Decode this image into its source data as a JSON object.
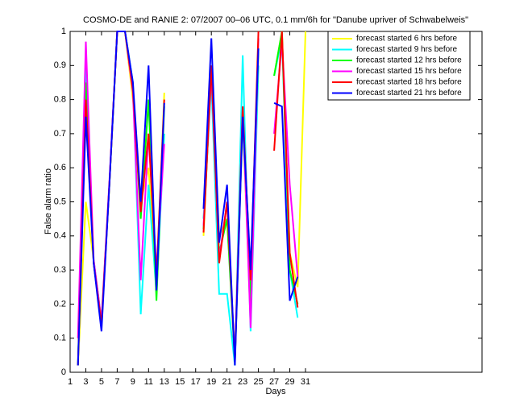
{
  "chart_data": {
    "type": "line",
    "title": "COSMO-DE and RANIE 2: 07/2007 00–06 UTC, 0.1 mm/6h for \"Danube upriver of Schwabelweis\"",
    "xlabel": "Days",
    "ylabel": "False alarm ratio",
    "x": [
      1,
      2,
      3,
      4,
      5,
      6,
      7,
      8,
      9,
      10,
      11,
      12,
      13,
      14,
      15,
      16,
      17,
      18,
      19,
      20,
      21,
      22,
      23,
      24,
      25,
      26,
      27,
      28,
      29,
      30,
      31
    ],
    "xlim": [
      1,
      53.5
    ],
    "ylim": [
      0,
      1
    ],
    "xticks": [
      1,
      3,
      5,
      7,
      9,
      11,
      13,
      15,
      17,
      19,
      21,
      23,
      25,
      27,
      29,
      31
    ],
    "yticks": [
      0,
      0.1,
      0.2,
      0.3,
      0.4,
      0.5,
      0.6,
      0.7,
      0.8,
      0.9,
      1
    ],
    "legend": "upper right",
    "series": [
      {
        "name": "forecast started 6 hrs before",
        "color": "#ffff00",
        "values": [
          null,
          0.02,
          0.5,
          0.33,
          0.15,
          0.55,
          1,
          1,
          0.8,
          0.5,
          0.6,
          0.25,
          0.82,
          null,
          null,
          null,
          null,
          0.4,
          0.9,
          0.4,
          0.45,
          0.05,
          0.75,
          0.15,
          0.95,
          null,
          0.87,
          1,
          0.35,
          0.25,
          1
        ]
      },
      {
        "name": "forecast started 9 hrs before",
        "color": "#00ffff",
        "values": [
          null,
          0.02,
          0.9,
          0.33,
          0.15,
          0.55,
          1,
          1,
          0.85,
          0.17,
          0.55,
          0.23,
          0.7,
          null,
          null,
          null,
          null,
          0.45,
          0.85,
          0.23,
          0.23,
          0.02,
          0.93,
          0.12,
          0.9,
          null,
          0.87,
          0.98,
          0.3,
          0.16,
          null
        ]
      },
      {
        "name": "forecast started 12 hrs before",
        "color": "#00ff00",
        "values": [
          null,
          0.02,
          0.85,
          0.32,
          0.14,
          0.55,
          1,
          1,
          0.83,
          0.45,
          0.8,
          0.21,
          0.78,
          null,
          null,
          null,
          null,
          0.42,
          0.88,
          0.35,
          0.45,
          0.03,
          0.75,
          0.2,
          0.95,
          null,
          0.87,
          1,
          0.3,
          0.2,
          null
        ]
      },
      {
        "name": "forecast started 15 hrs before",
        "color": "#ff00ff",
        "values": [
          null,
          0.1,
          0.97,
          0.33,
          0.15,
          0.56,
          1,
          1,
          0.82,
          0.27,
          0.7,
          0.3,
          0.67,
          null,
          null,
          null,
          null,
          0.43,
          0.88,
          0.33,
          0.5,
          0.04,
          0.78,
          0.13,
          0.98,
          null,
          0.7,
          0.97,
          0.55,
          0.28,
          null
        ]
      },
      {
        "name": "forecast started 18 hrs before",
        "color": "#ff0000",
        "values": [
          null,
          0.02,
          0.8,
          0.32,
          0.14,
          0.55,
          1,
          1,
          0.83,
          0.47,
          0.7,
          0.28,
          0.8,
          null,
          null,
          null,
          null,
          0.41,
          0.9,
          0.32,
          0.5,
          0.03,
          0.78,
          0.27,
          1,
          null,
          0.65,
          1,
          0.35,
          0.19,
          null
        ]
      },
      {
        "name": "forecast started 21 hrs before",
        "color": "#0000ff",
        "values": [
          null,
          0.02,
          0.75,
          0.32,
          0.12,
          0.55,
          1,
          1,
          0.85,
          0.5,
          0.9,
          0.24,
          0.79,
          null,
          null,
          null,
          null,
          0.48,
          0.98,
          0.38,
          0.55,
          0.02,
          0.75,
          0.3,
          0.95,
          null,
          0.79,
          0.78,
          0.21,
          0.28,
          null
        ]
      }
    ]
  }
}
